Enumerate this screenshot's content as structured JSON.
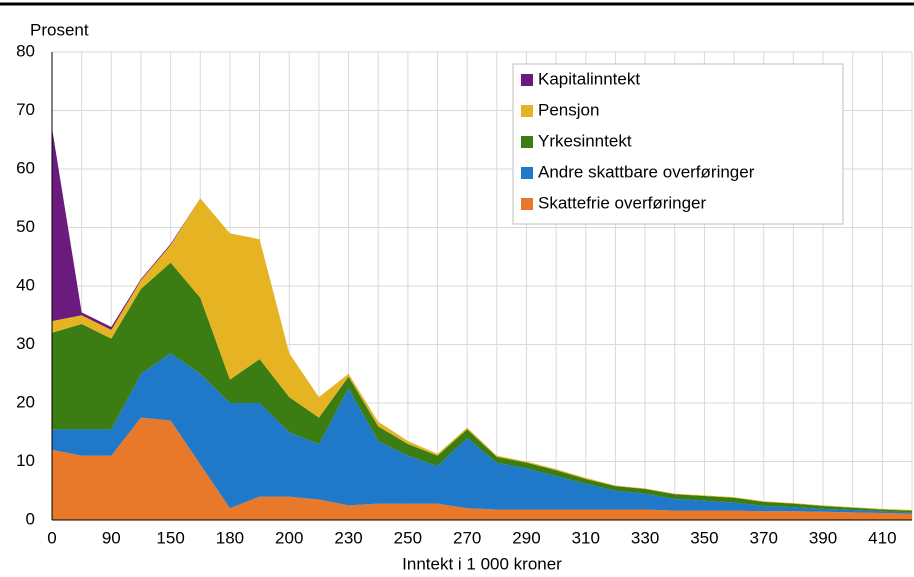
{
  "chart_data": {
    "type": "stacked_area",
    "y_label": "Prosent",
    "x_label": "Inntekt i 1 000 kroner",
    "categories": [
      "0",
      null,
      "90",
      null,
      "150",
      null,
      "180",
      null,
      "200",
      null,
      "230",
      null,
      "250",
      null,
      "270",
      null,
      "290",
      null,
      "310",
      null,
      "330",
      null,
      "350",
      null,
      "370",
      null,
      "390",
      null,
      "410",
      null
    ],
    "series": [
      {
        "name": "Skattefrie overføringer",
        "color": "#e8792a",
        "values": [
          12,
          11,
          11,
          17.5,
          17,
          9.5,
          2,
          4,
          4,
          3.5,
          2.5,
          2.8,
          2.8,
          2.8,
          2,
          1.8,
          1.8,
          1.8,
          1.8,
          1.8,
          1.8,
          1.6,
          1.6,
          1.6,
          1.5,
          1.5,
          1.4,
          1.3,
          1.2,
          1.1
        ]
      },
      {
        "name": "Andre skattbare overføringer",
        "color": "#1f78c8",
        "values": [
          3.5,
          4.5,
          4.5,
          7.5,
          11.5,
          15.5,
          18,
          16,
          11,
          9.5,
          20,
          10.7,
          8.2,
          6.4,
          12,
          8,
          7,
          5.7,
          4.4,
          3.2,
          2.7,
          2,
          1.7,
          1.4,
          0.9,
          0.7,
          0.5,
          0.4,
          0.3,
          0.2
        ]
      },
      {
        "name": "Yrkesinntekt",
        "color": "#3b7d12",
        "values": [
          16.5,
          18,
          15.5,
          14.5,
          15.5,
          13,
          4,
          7.5,
          6,
          4.5,
          2,
          2.5,
          2,
          1.8,
          1.5,
          1,
          1,
          1,
          0.8,
          0.8,
          0.8,
          0.8,
          0.8,
          0.8,
          0.7,
          0.6,
          0.5,
          0.4,
          0.3,
          0.3
        ]
      },
      {
        "name": "Pensjon",
        "color": "#e6b422",
        "values": [
          2,
          1.5,
          1.5,
          1.5,
          3,
          17,
          25,
          20.5,
          7.5,
          3.5,
          0.5,
          0.8,
          0.5,
          0.3,
          0.3,
          0.2,
          0.2,
          0.2,
          0.2,
          0.1,
          0.1,
          0.1,
          0.1,
          0.1,
          0.1,
          0.1,
          0.1,
          0.1,
          0.1,
          0.1
        ]
      },
      {
        "name": "Kapitalinntekt",
        "color": "#6b1a7e",
        "values": [
          33,
          0.5,
          0.5,
          0.2,
          0.2,
          0,
          0,
          0,
          0,
          0,
          0,
          0,
          0,
          0,
          0,
          0,
          0,
          0,
          0,
          0,
          0,
          0,
          0,
          0,
          0,
          0,
          0,
          0,
          0,
          0
        ]
      }
    ],
    "ylim": [
      0,
      80
    ],
    "yticks": [
      0,
      10,
      20,
      30,
      40,
      50,
      60,
      70,
      80
    ],
    "grid": true,
    "legend": "upper-right"
  }
}
